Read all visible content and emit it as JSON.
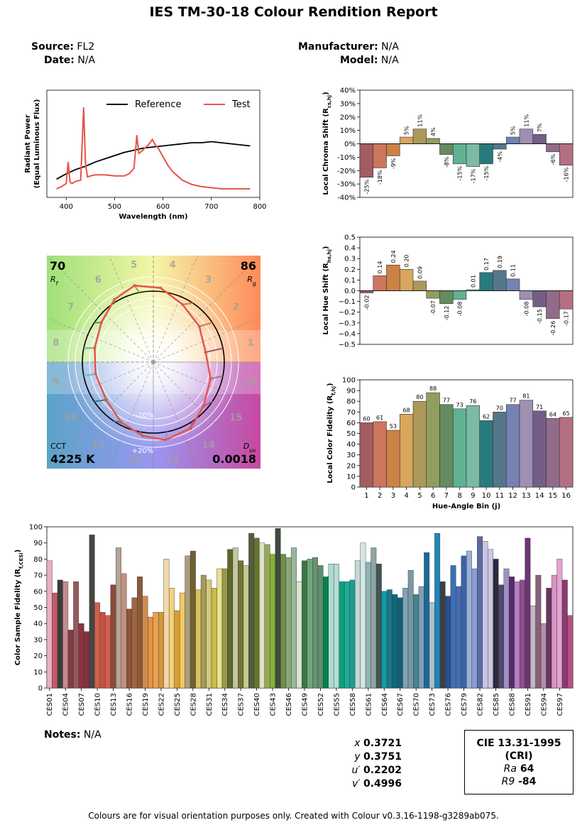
{
  "title": "IES TM-30-18 Colour Rendition Report",
  "meta": {
    "source_label": "Source:",
    "source": "FL2",
    "date_label": "Date:",
    "date": "N/A",
    "manufacturer_label": "Manufacturer:",
    "manufacturer": "N/A",
    "model_label": "Model:",
    "model": "N/A"
  },
  "notes": {
    "label": "Notes:",
    "value": "N/A"
  },
  "chromaticity": {
    "x_label": "x",
    "x": "0.3721",
    "y_label": "y",
    "y": "0.3751",
    "u_label": "u′",
    "u": "0.2202",
    "v_label": "v′",
    "v": "0.4996"
  },
  "cri": {
    "title1": "CIE 13.31-1995",
    "title2": "(CRI)",
    "ra_label": "Ra",
    "ra": "64",
    "r9_label": "R9",
    "r9": "-84"
  },
  "footer": "Colours are for visual orientation purposes only. Created with Colour v0.3.16-1198-g3289ab075.",
  "colors": {
    "reference": "#000000",
    "test": "#e8534a",
    "bins": [
      "#a35c60",
      "#cc765e",
      "#cc8145",
      "#d8a65c",
      "#ac9959",
      "#919e5d",
      "#668b5e",
      "#61b290",
      "#7bbaa6",
      "#297a7e",
      "#55778c",
      "#7482b1",
      "#9f8fb3",
      "#745d86",
      "#936b8a",
      "#b47082"
    ]
  },
  "chart_data": [
    {
      "id": "spd",
      "type": "line",
      "title": "",
      "xlabel": "Wavelength (nm)",
      "ylabel": "Radiant Power\n(Equal Luminous Flux)",
      "xlim": [
        360,
        800
      ],
      "xticks": [
        400,
        500,
        600,
        700,
        800
      ],
      "legend": "top-right",
      "series": [
        {
          "name": "Reference",
          "x": [
            380,
            400,
            420,
            440,
            460,
            480,
            500,
            520,
            540,
            560,
            580,
            600,
            620,
            640,
            660,
            680,
            700,
            720,
            740,
            760,
            780
          ],
          "y": [
            0.17,
            0.22,
            0.26,
            0.29,
            0.33,
            0.36,
            0.39,
            0.42,
            0.44,
            0.46,
            0.47,
            0.48,
            0.49,
            0.5,
            0.51,
            0.51,
            0.52,
            0.51,
            0.5,
            0.49,
            0.48
          ]
        },
        {
          "name": "Test",
          "x": [
            380,
            390,
            400,
            404,
            408,
            412,
            420,
            430,
            436,
            440,
            444,
            450,
            460,
            480,
            500,
            520,
            530,
            540,
            546,
            550,
            556,
            560,
            570,
            578,
            584,
            590,
            600,
            610,
            620,
            640,
            660,
            680,
            700,
            720,
            740,
            760,
            780
          ],
          "y": [
            0.08,
            0.1,
            0.13,
            0.33,
            0.14,
            0.13,
            0.15,
            0.16,
            0.84,
            0.31,
            0.19,
            0.2,
            0.21,
            0.21,
            0.2,
            0.2,
            0.22,
            0.27,
            0.58,
            0.41,
            0.43,
            0.45,
            0.49,
            0.54,
            0.49,
            0.46,
            0.38,
            0.3,
            0.24,
            0.16,
            0.12,
            0.1,
            0.09,
            0.08,
            0.08,
            0.08,
            0.08
          ]
        }
      ]
    },
    {
      "id": "chroma",
      "type": "bar",
      "ylabel": "Local Chroma Shift (Rcs,hj)",
      "ylim": [
        -40,
        40
      ],
      "yticks": [
        -40,
        -30,
        -20,
        -10,
        0,
        10,
        20,
        30,
        40
      ],
      "tick_format": "percent",
      "values": [
        -25,
        -18,
        -9,
        5,
        11,
        4,
        -8,
        -15,
        -17,
        -15,
        -4,
        5,
        11,
        7,
        -6,
        -16
      ],
      "labels": [
        "-25%",
        "-18%",
        "-9%",
        "5%",
        "11%",
        "4%",
        "-8%",
        "-15%",
        "-17%",
        "-15%",
        "-4%",
        "5%",
        "11%",
        "7%",
        "-6%",
        "-16%"
      ]
    },
    {
      "id": "hue",
      "type": "bar",
      "ylabel": "Local Hue Shift (Rhs,hj)",
      "ylim": [
        -0.5,
        0.5
      ],
      "yticks": [
        -0.5,
        -0.4,
        -0.3,
        -0.2,
        -0.1,
        0,
        0.1,
        0.2,
        0.3,
        0.4,
        0.5
      ],
      "tick_labels": [
        "−0.5",
        "−0.4",
        "−0.3",
        "−0.2",
        "−0.1",
        "0.0",
        "0.1",
        "0.2",
        "0.3",
        "0.4",
        "0.5"
      ],
      "values": [
        -0.02,
        0.14,
        0.24,
        0.2,
        0.09,
        -0.07,
        -0.12,
        -0.08,
        0.01,
        0.17,
        0.19,
        0.11,
        -0.08,
        -0.15,
        -0.26,
        -0.17
      ],
      "labels": [
        "-0.02",
        "0.14",
        "0.24",
        "0.20",
        "0.09",
        "-0.07",
        "-0.12",
        "-0.08",
        "0.01",
        "0.17",
        "0.19",
        "0.11",
        "-0.08",
        "-0.15",
        "-0.26",
        "-0.17"
      ]
    },
    {
      "id": "fidelity",
      "type": "bar",
      "ylabel": "Local Color Fidelity (Rf,hj)",
      "xlabel": "Hue-Angle Bin (j)",
      "ylim": [
        0,
        100
      ],
      "yticks": [
        0,
        10,
        20,
        30,
        40,
        50,
        60,
        70,
        80,
        90,
        100
      ],
      "categories": [
        "1",
        "2",
        "3",
        "4",
        "5",
        "6",
        "7",
        "8",
        "9",
        "10",
        "11",
        "12",
        "13",
        "14",
        "15",
        "16"
      ],
      "values": [
        60,
        61,
        53,
        68,
        80,
        88,
        77,
        73,
        76,
        62,
        70,
        77,
        81,
        71,
        64,
        65
      ],
      "labels": [
        "60",
        "61",
        "53",
        "68",
        "80",
        "88",
        "77",
        "73",
        "76",
        "62",
        "70",
        "77",
        "81",
        "71",
        "64",
        "65"
      ]
    },
    {
      "id": "vector",
      "type": "scatter",
      "rf_value": "70",
      "rf_label": "Rf",
      "rg_value": "86",
      "rg_label": "Rg",
      "cct_label": "CCT",
      "cct_value": "4225 K",
      "duv_label": "Duv",
      "duv_value": "0.0018",
      "ring_labels": [
        "-20%",
        "+20%"
      ],
      "bin_labels": [
        "1",
        "2",
        "3",
        "4",
        "5",
        "6",
        "7",
        "8",
        "9",
        "10",
        "11",
        "12",
        "13",
        "14",
        "15",
        "16"
      ],
      "chroma_shift": [
        -25,
        -18,
        -9,
        5,
        11,
        4,
        -8,
        -15,
        -17,
        -15,
        -4,
        5,
        11,
        7,
        -6,
        -16
      ],
      "hue_shift": [
        -0.02,
        0.14,
        0.24,
        0.2,
        0.09,
        -0.07,
        -0.12,
        -0.08,
        0.01,
        0.17,
        0.19,
        0.11,
        -0.08,
        -0.15,
        -0.26,
        -0.17
      ]
    },
    {
      "id": "samples",
      "type": "bar",
      "ylabel": "Color Sample Fidelity (Rf,CESi)",
      "ylim": [
        0,
        100
      ],
      "yticks": [
        0,
        10,
        20,
        30,
        40,
        50,
        60,
        70,
        80,
        90,
        100
      ],
      "tick_every": 3,
      "categories": [
        "CES01",
        "CES02",
        "CES03",
        "CES04",
        "CES05",
        "CES06",
        "CES07",
        "CES08",
        "CES09",
        "CES10",
        "CES11",
        "CES12",
        "CES13",
        "CES14",
        "CES15",
        "CES16",
        "CES17",
        "CES18",
        "CES19",
        "CES20",
        "CES21",
        "CES22",
        "CES23",
        "CES24",
        "CES25",
        "CES26",
        "CES27",
        "CES28",
        "CES29",
        "CES30",
        "CES31",
        "CES32",
        "CES33",
        "CES34",
        "CES35",
        "CES36",
        "CES37",
        "CES38",
        "CES39",
        "CES40",
        "CES41",
        "CES42",
        "CES43",
        "CES44",
        "CES45",
        "CES46",
        "CES47",
        "CES48",
        "CES49",
        "CES50",
        "CES51",
        "CES52",
        "CES53",
        "CES54",
        "CES55",
        "CES56",
        "CES57",
        "CES58",
        "CES59",
        "CES60",
        "CES61",
        "CES62",
        "CES63",
        "CES64",
        "CES65",
        "CES66",
        "CES67",
        "CES68",
        "CES69",
        "CES70",
        "CES71",
        "CES72",
        "CES73",
        "CES74",
        "CES75",
        "CES76",
        "CES77",
        "CES78",
        "CES79",
        "CES80",
        "CES81",
        "CES82",
        "CES83",
        "CES84",
        "CES85",
        "CES86",
        "CES87",
        "CES88",
        "CES89",
        "CES90",
        "CES91",
        "CES92",
        "CES93",
        "CES94",
        "CES95",
        "CES96",
        "CES97",
        "CES98",
        "CES99"
      ],
      "values": [
        79,
        59,
        67,
        66,
        36,
        66,
        40,
        35,
        95,
        53,
        47,
        45,
        64,
        87,
        71,
        49,
        56,
        69,
        57,
        44,
        47,
        47,
        80,
        62,
        48,
        59,
        82,
        85,
        61,
        70,
        67,
        62,
        74,
        74,
        86,
        87,
        79,
        76,
        96,
        93,
        90,
        89,
        83,
        99,
        83,
        81,
        87,
        66,
        79,
        80,
        81,
        76,
        69,
        77,
        77,
        66,
        66,
        67,
        79,
        90,
        78,
        87,
        77,
        60,
        61,
        58,
        56,
        62,
        73,
        58,
        63,
        84,
        53,
        96,
        66,
        57,
        76,
        63,
        82,
        85,
        74,
        94,
        91,
        86,
        80,
        64,
        74,
        69,
        66,
        67,
        93,
        51,
        70,
        40,
        62,
        70,
        80,
        67,
        45
      ],
      "colors": [
        "#e7b0c1",
        "#c4596c",
        "#3c3c3c",
        "#c58b8a",
        "#833c44",
        "#945a5d",
        "#8d3344",
        "#88313c",
        "#474543",
        "#d0614a",
        "#c45344",
        "#d95c4e",
        "#8a4b3a",
        "#b8a294",
        "#c0937f",
        "#8e5538",
        "#a26440",
        "#8a5a3a",
        "#cd8c4b",
        "#e5923f",
        "#eba152",
        "#d5953e",
        "#f0d8a8",
        "#f6d07e",
        "#d89f32",
        "#f4c862",
        "#a8a07a",
        "#6f6133",
        "#d9c35a",
        "#a59958",
        "#d3c97b",
        "#cbbb45",
        "#e6e38f",
        "#99984c",
        "#5d6727",
        "#c6c6a0",
        "#6f7633",
        "#c4cb91",
        "#545c41",
        "#66742c",
        "#dee3c6",
        "#97a958",
        "#86b136",
        "#3e4b3c",
        "#6e8f4c",
        "#8aa877",
        "#9ab79a",
        "#d6e6ce",
        "#3f7543",
        "#6ca977",
        "#6c9273",
        "#5e8e6b",
        "#04834d",
        "#acdccf",
        "#b5ddd5",
        "#0c9f7e",
        "#1aad96",
        "#229b91",
        "#c3d9d6",
        "#d4e6e5",
        "#8fb3b3",
        "#8fa5a4",
        "#415555",
        "#0f9ea3",
        "#19788a",
        "#0f687b",
        "#155f73",
        "#7ea4bc",
        "#7c98a2",
        "#44848f",
        "#7e9fb9",
        "#1b6a97",
        "#a9c0cf",
        "#1f85ba",
        "#3b4045",
        "#2a4f8d",
        "#3c70b5",
        "#476db3",
        "#3c63aa",
        "#9cb1d6",
        "#8b9bd3",
        "#5c6ba3",
        "#cac4e4",
        "#cdc7e2",
        "#2e2b39",
        "#52476c",
        "#9d8fc4",
        "#552a6c",
        "#b37fc1",
        "#8e4d8d",
        "#6a3572",
        "#c4b6c3",
        "#86607a",
        "#b48ea8",
        "#6a3462",
        "#d895c2",
        "#e3a4cd",
        "#8a3b70",
        "#b65081"
      ]
    }
  ]
}
